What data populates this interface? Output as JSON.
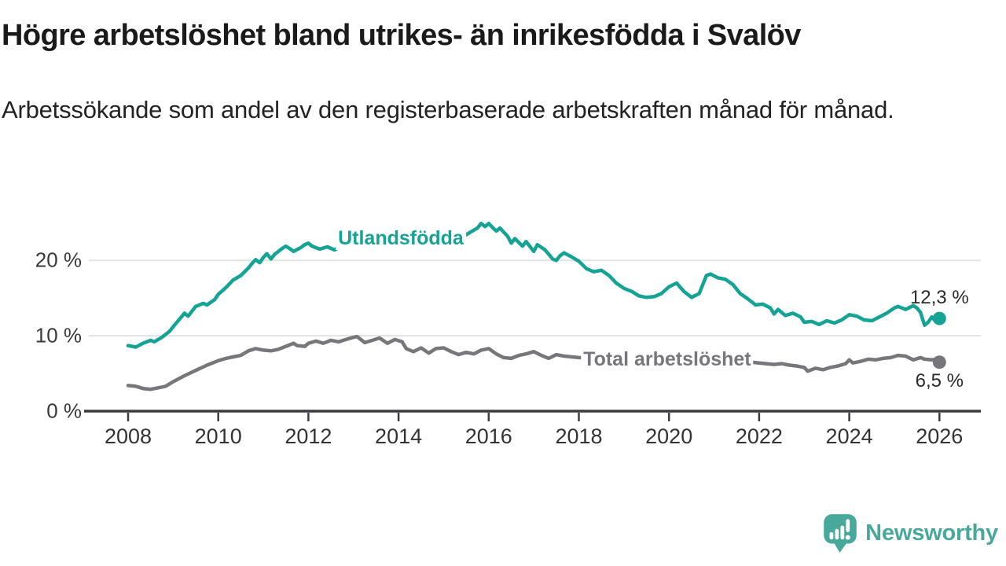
{
  "header": {
    "title": "Högre arbetslöshet bland utrikes- än inrikesfödda i Svalöv",
    "subtitle": "Arbetssökande som andel av den registerbaserade arbetskraften månad för månad."
  },
  "footer": {
    "brand": "Newsworthy",
    "logo_icon": "speech-bubble-bar-chart-exclamation"
  },
  "colors": {
    "teal": "#14a394",
    "gray": "#77777b",
    "grid": "#e3e3e3",
    "axis": "#3c3c42",
    "tick_text": "#333333",
    "logo_teal": "#48a89c"
  },
  "chart_data": {
    "type": "line",
    "title": "Högre arbetslöshet bland utrikes- än inrikesfödda i Svalöv",
    "subtitle": "Arbetssökande som andel av den registerbaserade arbetskraften månad för månad.",
    "unit": "%",
    "grid": "horizontal-only",
    "legend_position": "inline-labels",
    "x_axis": {
      "ticks": [
        2008,
        2010,
        2012,
        2014,
        2016,
        2018,
        2020,
        2022,
        2024,
        2026
      ],
      "tick_labels": [
        "2008",
        "2010",
        "2012",
        "2014",
        "2016",
        "2018",
        "2020",
        "2022",
        "2024",
        "2026"
      ],
      "range": [
        2007.1,
        2027.0
      ]
    },
    "y_axis": {
      "ticks": [
        0,
        10,
        20
      ],
      "tick_labels": [
        "0 %",
        "10 %",
        "20 %"
      ],
      "range": [
        0,
        27
      ]
    },
    "series": [
      {
        "name": "Utlandsfödda",
        "color": "#14a394",
        "end_value": 12.3,
        "end_label": "12,3 %",
        "label_anchor": [
          2014.05,
          22.95
        ],
        "points": [
          [
            2008.0,
            8.7
          ],
          [
            2008.17,
            8.5
          ],
          [
            2008.33,
            9.0
          ],
          [
            2008.5,
            9.4
          ],
          [
            2008.58,
            9.2
          ],
          [
            2008.75,
            9.8
          ],
          [
            2008.92,
            10.6
          ],
          [
            2009.0,
            11.2
          ],
          [
            2009.17,
            12.4
          ],
          [
            2009.25,
            13.0
          ],
          [
            2009.33,
            12.6
          ],
          [
            2009.5,
            13.9
          ],
          [
            2009.67,
            14.3
          ],
          [
            2009.75,
            14.1
          ],
          [
            2009.92,
            14.8
          ],
          [
            2010.0,
            15.5
          ],
          [
            2010.17,
            16.4
          ],
          [
            2010.33,
            17.4
          ],
          [
            2010.5,
            18.0
          ],
          [
            2010.67,
            19.0
          ],
          [
            2010.75,
            19.6
          ],
          [
            2010.83,
            20.1
          ],
          [
            2010.92,
            19.7
          ],
          [
            2011.0,
            20.4
          ],
          [
            2011.08,
            20.9
          ],
          [
            2011.17,
            20.2
          ],
          [
            2011.25,
            20.8
          ],
          [
            2011.42,
            21.6
          ],
          [
            2011.5,
            21.9
          ],
          [
            2011.58,
            21.6
          ],
          [
            2011.67,
            21.2
          ],
          [
            2011.83,
            21.7
          ],
          [
            2011.92,
            22.1
          ],
          [
            2012.0,
            22.3
          ],
          [
            2012.08,
            21.9
          ],
          [
            2012.25,
            21.5
          ],
          [
            2012.42,
            21.8
          ],
          [
            2012.58,
            21.4
          ],
          [
            2012.75,
            22.0
          ],
          [
            2012.92,
            21.7
          ],
          [
            2013.08,
            22.1
          ],
          [
            2013.25,
            21.8
          ],
          [
            2013.42,
            22.3
          ],
          [
            2013.58,
            21.9
          ],
          [
            2013.75,
            22.2
          ],
          [
            2013.92,
            22.0
          ],
          [
            2014.08,
            22.5
          ],
          [
            2014.25,
            22.3
          ],
          [
            2014.42,
            22.7
          ],
          [
            2014.58,
            22.4
          ],
          [
            2014.75,
            22.9
          ],
          [
            2014.92,
            23.1
          ],
          [
            2015.08,
            22.9
          ],
          [
            2015.25,
            23.3
          ],
          [
            2015.42,
            23.1
          ],
          [
            2015.58,
            23.7
          ],
          [
            2015.75,
            24.3
          ],
          [
            2015.83,
            24.9
          ],
          [
            2015.92,
            24.5
          ],
          [
            2016.0,
            24.9
          ],
          [
            2016.08,
            24.4
          ],
          [
            2016.17,
            23.9
          ],
          [
            2016.25,
            24.3
          ],
          [
            2016.42,
            23.2
          ],
          [
            2016.5,
            22.3
          ],
          [
            2016.58,
            22.9
          ],
          [
            2016.75,
            21.9
          ],
          [
            2016.83,
            22.5
          ],
          [
            2016.92,
            21.8
          ],
          [
            2017.0,
            21.2
          ],
          [
            2017.08,
            22.1
          ],
          [
            2017.25,
            21.4
          ],
          [
            2017.42,
            20.2
          ],
          [
            2017.5,
            20.0
          ],
          [
            2017.58,
            20.6
          ],
          [
            2017.67,
            21.0
          ],
          [
            2017.83,
            20.5
          ],
          [
            2018.0,
            19.9
          ],
          [
            2018.17,
            18.9
          ],
          [
            2018.33,
            18.5
          ],
          [
            2018.5,
            18.7
          ],
          [
            2018.67,
            18.0
          ],
          [
            2018.83,
            17.0
          ],
          [
            2019.0,
            16.3
          ],
          [
            2019.17,
            15.9
          ],
          [
            2019.33,
            15.3
          ],
          [
            2019.5,
            15.1
          ],
          [
            2019.67,
            15.2
          ],
          [
            2019.83,
            15.6
          ],
          [
            2020.0,
            16.5
          ],
          [
            2020.17,
            17.0
          ],
          [
            2020.33,
            15.9
          ],
          [
            2020.5,
            15.1
          ],
          [
            2020.67,
            15.6
          ],
          [
            2020.83,
            18.0
          ],
          [
            2020.92,
            18.2
          ],
          [
            2021.08,
            17.7
          ],
          [
            2021.25,
            17.5
          ],
          [
            2021.42,
            16.8
          ],
          [
            2021.58,
            15.6
          ],
          [
            2021.75,
            14.9
          ],
          [
            2021.92,
            14.1
          ],
          [
            2022.08,
            14.2
          ],
          [
            2022.25,
            13.7
          ],
          [
            2022.33,
            12.9
          ],
          [
            2022.42,
            13.5
          ],
          [
            2022.58,
            12.7
          ],
          [
            2022.75,
            13.0
          ],
          [
            2022.92,
            12.5
          ],
          [
            2023.0,
            11.8
          ],
          [
            2023.17,
            11.9
          ],
          [
            2023.33,
            11.5
          ],
          [
            2023.5,
            12.0
          ],
          [
            2023.67,
            11.7
          ],
          [
            2023.83,
            12.1
          ],
          [
            2024.0,
            12.8
          ],
          [
            2024.17,
            12.6
          ],
          [
            2024.33,
            12.1
          ],
          [
            2024.5,
            12.0
          ],
          [
            2024.67,
            12.5
          ],
          [
            2024.83,
            13.0
          ],
          [
            2025.0,
            13.7
          ],
          [
            2025.08,
            13.9
          ],
          [
            2025.25,
            13.5
          ],
          [
            2025.42,
            14.0
          ],
          [
            2025.5,
            13.7
          ],
          [
            2025.58,
            13.1
          ],
          [
            2025.67,
            11.4
          ],
          [
            2025.75,
            11.8
          ],
          [
            2025.83,
            12.5
          ],
          [
            2025.92,
            11.9
          ],
          [
            2026.0,
            12.3
          ]
        ]
      },
      {
        "name": "Total arbetslöshet",
        "color": "#77777b",
        "end_value": 6.5,
        "end_label": "6,5 %",
        "label_anchor": [
          2019.96,
          6.89
        ],
        "points": [
          [
            2008.0,
            3.4
          ],
          [
            2008.17,
            3.3
          ],
          [
            2008.33,
            3.0
          ],
          [
            2008.5,
            2.9
          ],
          [
            2008.67,
            3.1
          ],
          [
            2008.83,
            3.3
          ],
          [
            2009.0,
            3.9
          ],
          [
            2009.25,
            4.7
          ],
          [
            2009.5,
            5.4
          ],
          [
            2009.75,
            6.1
          ],
          [
            2010.0,
            6.7
          ],
          [
            2010.17,
            7.0
          ],
          [
            2010.33,
            7.2
          ],
          [
            2010.5,
            7.4
          ],
          [
            2010.67,
            8.0
          ],
          [
            2010.83,
            8.3
          ],
          [
            2011.0,
            8.1
          ],
          [
            2011.17,
            8.0
          ],
          [
            2011.33,
            8.2
          ],
          [
            2011.5,
            8.6
          ],
          [
            2011.67,
            9.0
          ],
          [
            2011.75,
            8.7
          ],
          [
            2011.92,
            8.6
          ],
          [
            2012.0,
            9.0
          ],
          [
            2012.17,
            9.3
          ],
          [
            2012.33,
            9.0
          ],
          [
            2012.5,
            9.4
          ],
          [
            2012.67,
            9.2
          ],
          [
            2012.83,
            9.5
          ],
          [
            2013.0,
            9.8
          ],
          [
            2013.08,
            9.9
          ],
          [
            2013.25,
            9.1
          ],
          [
            2013.42,
            9.4
          ],
          [
            2013.58,
            9.7
          ],
          [
            2013.75,
            9.0
          ],
          [
            2013.92,
            9.5
          ],
          [
            2014.08,
            9.2
          ],
          [
            2014.17,
            8.3
          ],
          [
            2014.33,
            7.9
          ],
          [
            2014.5,
            8.4
          ],
          [
            2014.67,
            7.7
          ],
          [
            2014.83,
            8.3
          ],
          [
            2015.0,
            8.4
          ],
          [
            2015.17,
            7.9
          ],
          [
            2015.33,
            7.5
          ],
          [
            2015.5,
            7.8
          ],
          [
            2015.67,
            7.6
          ],
          [
            2015.83,
            8.1
          ],
          [
            2016.0,
            8.3
          ],
          [
            2016.17,
            7.6
          ],
          [
            2016.33,
            7.1
          ],
          [
            2016.5,
            7.0
          ],
          [
            2016.67,
            7.4
          ],
          [
            2016.83,
            7.6
          ],
          [
            2017.0,
            7.9
          ],
          [
            2017.17,
            7.4
          ],
          [
            2017.33,
            7.0
          ],
          [
            2017.5,
            7.5
          ],
          [
            2017.67,
            7.3
          ],
          [
            2018.0,
            7.1
          ],
          [
            2018.5,
            6.9
          ],
          [
            2019.0,
            6.7
          ],
          [
            2019.5,
            6.6
          ],
          [
            2020.0,
            6.9
          ],
          [
            2020.5,
            7.1
          ],
          [
            2021.0,
            6.9
          ],
          [
            2021.5,
            6.7
          ],
          [
            2022.0,
            6.4
          ],
          [
            2022.33,
            6.2
          ],
          [
            2022.5,
            6.3
          ],
          [
            2022.67,
            6.1
          ],
          [
            2022.83,
            6.0
          ],
          [
            2023.0,
            5.8
          ],
          [
            2023.08,
            5.3
          ],
          [
            2023.25,
            5.7
          ],
          [
            2023.42,
            5.5
          ],
          [
            2023.58,
            5.8
          ],
          [
            2023.75,
            6.0
          ],
          [
            2023.92,
            6.3
          ],
          [
            2024.0,
            6.8
          ],
          [
            2024.08,
            6.4
          ],
          [
            2024.25,
            6.6
          ],
          [
            2024.42,
            6.9
          ],
          [
            2024.58,
            6.8
          ],
          [
            2024.75,
            7.0
          ],
          [
            2024.92,
            7.1
          ],
          [
            2025.08,
            7.4
          ],
          [
            2025.25,
            7.3
          ],
          [
            2025.42,
            6.8
          ],
          [
            2025.58,
            7.1
          ],
          [
            2025.67,
            6.9
          ],
          [
            2025.83,
            6.8
          ],
          [
            2025.92,
            6.9
          ],
          [
            2026.0,
            6.5
          ]
        ]
      }
    ]
  }
}
